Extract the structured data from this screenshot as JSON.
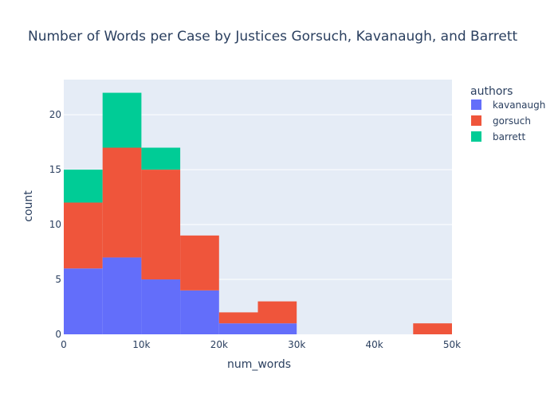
{
  "chart_data": {
    "type": "bar",
    "subtype": "stacked-histogram",
    "title": "Number of Words per Case by Justices Gorsuch, Kavanaugh, and Barrett",
    "xlabel": "num_words",
    "ylabel": "count",
    "xlim": [
      0,
      50000
    ],
    "ylim": [
      0,
      23.2
    ],
    "bin_width": 5000,
    "x": [
      2500,
      7500,
      12500,
      17500,
      22500,
      27500,
      32500,
      37500,
      42500,
      47500
    ],
    "x_ticks": [
      {
        "value": 0,
        "label": "0"
      },
      {
        "value": 10000,
        "label": "10k"
      },
      {
        "value": 20000,
        "label": "20k"
      },
      {
        "value": 30000,
        "label": "30k"
      },
      {
        "value": 40000,
        "label": "40k"
      },
      {
        "value": 50000,
        "label": "50k"
      }
    ],
    "y_ticks": [
      {
        "value": 0,
        "label": "0"
      },
      {
        "value": 5,
        "label": "5"
      },
      {
        "value": 10,
        "label": "10"
      },
      {
        "value": 15,
        "label": "15"
      },
      {
        "value": 20,
        "label": "20"
      }
    ],
    "legend_title": "authors",
    "legend_position": "right",
    "grid": true,
    "series": [
      {
        "name": "kavanaugh",
        "color": "#636efa",
        "values": [
          6,
          7,
          5,
          4,
          1,
          1,
          0,
          0,
          0,
          0
        ]
      },
      {
        "name": "gorsuch",
        "color": "#ef553b",
        "values": [
          6,
          10,
          10,
          5,
          1,
          2,
          0,
          0,
          0,
          1
        ]
      },
      {
        "name": "barrett",
        "color": "#00cc96",
        "values": [
          3,
          5,
          2,
          0,
          0,
          0,
          0,
          0,
          0,
          0
        ]
      }
    ],
    "colors": {
      "plot_bg": "#e5ecf6",
      "grid": "#ffffff",
      "text": "#2a3f5f"
    }
  }
}
